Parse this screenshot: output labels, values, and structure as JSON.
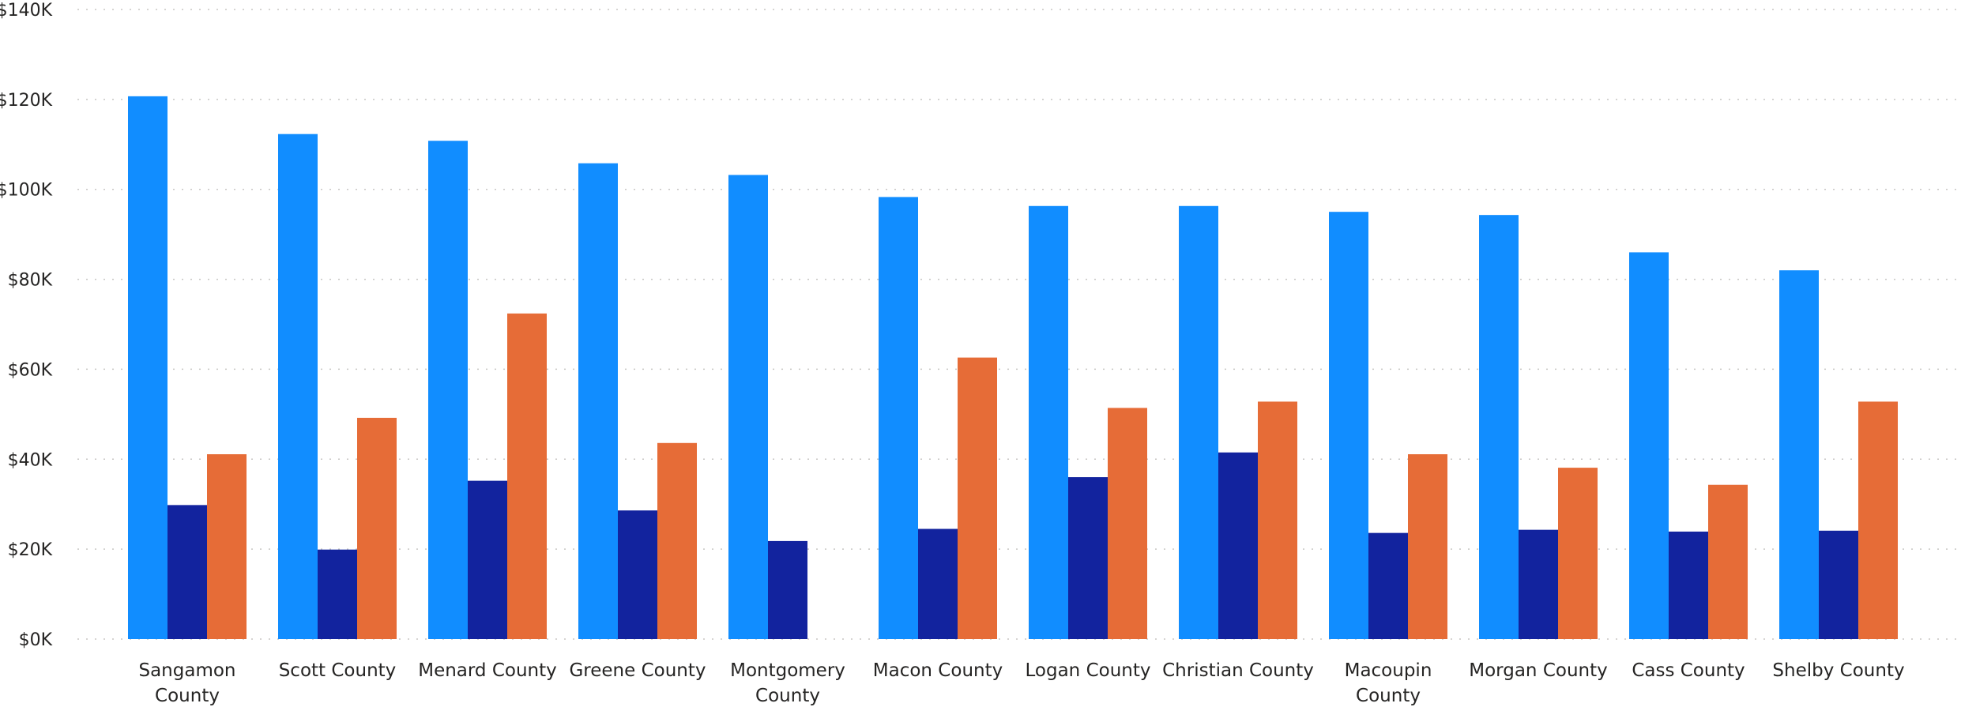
{
  "chart_data": {
    "type": "bar",
    "title": "",
    "xlabel": "",
    "ylabel": "",
    "ylim": [
      0,
      140000
    ],
    "yticks": [
      "$0K",
      "$20K",
      "$40K",
      "$60K",
      "$80K",
      "$100K",
      "$120K",
      "$140K"
    ],
    "grid": true,
    "legend": "none",
    "categories": [
      [
        "Sangamon",
        "County"
      ],
      [
        "Scott County"
      ],
      [
        "Menard County"
      ],
      [
        "Greene County"
      ],
      [
        "Montgomery",
        "County"
      ],
      [
        "Macon County"
      ],
      [
        "Logan County"
      ],
      [
        "Christian County"
      ],
      [
        "Macoupin",
        "County"
      ],
      [
        "Morgan County"
      ],
      [
        "Cass County"
      ],
      [
        "Shelby County"
      ]
    ],
    "series": [
      {
        "color": "#118DFF",
        "values": [
          120700,
          112300,
          110800,
          105800,
          103200,
          98300,
          96300,
          96300,
          95000,
          94300,
          86000,
          82000
        ]
      },
      {
        "color": "#12239E",
        "values": [
          29800,
          19900,
          35200,
          28600,
          21800,
          24500,
          36000,
          41500,
          23600,
          24300,
          23900,
          24100
        ]
      },
      {
        "color": "#E66C37",
        "values": [
          41100,
          49200,
          72400,
          43600,
          null,
          62600,
          51400,
          52800,
          41100,
          38100,
          34300,
          52800
        ]
      }
    ]
  }
}
